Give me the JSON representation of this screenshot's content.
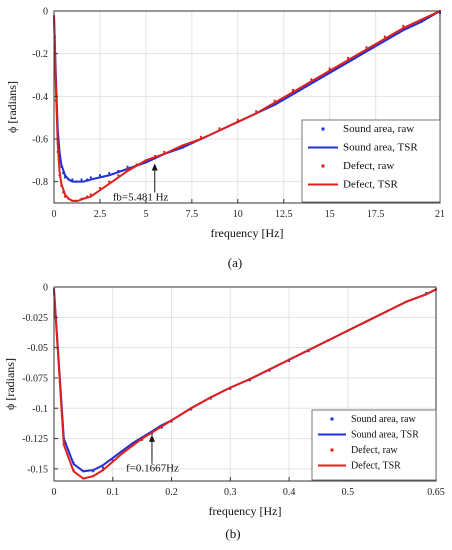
{
  "chart_data": [
    {
      "type": "line",
      "panel_label": "(a)",
      "xlabel": "frequency [Hz]",
      "ylabel": "ϕ [radians]",
      "xlim": [
        0,
        21
      ],
      "ylim": [
        -0.9,
        0
      ],
      "xticks": [
        "0",
        "2.5",
        "5",
        "7.5",
        "10",
        "12.5",
        "15",
        "17.5",
        "21"
      ],
      "xtick_values": [
        0,
        2.5,
        5,
        7.5,
        10,
        12.5,
        15,
        17.5,
        21
      ],
      "yticks": [
        "0",
        "-0.2",
        "-0.4",
        "-0.6",
        "-0.8"
      ],
      "ytick_values": [
        0,
        -0.2,
        -0.4,
        -0.6,
        -0.8
      ],
      "grid": true,
      "legend_position": "right",
      "series": [
        {
          "name": "Sound area, raw",
          "style": "points",
          "color": "#1f2fd6",
          "x": [
            0.05,
            0.1,
            0.2,
            0.3,
            0.4,
            0.5,
            0.6,
            0.8,
            1.0,
            1.2,
            1.5,
            1.8,
            2.0,
            2.5,
            3.0,
            3.5,
            4.0,
            4.5,
            5.0,
            5.5,
            6.0,
            7.0,
            8.0,
            9.0,
            10.0,
            11.0,
            12.0,
            13.0,
            14.0,
            15.0,
            16.0,
            17.0,
            18.0,
            19.0,
            20.0,
            21.0
          ],
          "y": [
            -0.12,
            -0.35,
            -0.58,
            -0.68,
            -0.73,
            -0.76,
            -0.78,
            -0.79,
            -0.79,
            -0.8,
            -0.79,
            -0.79,
            -0.78,
            -0.77,
            -0.76,
            -0.75,
            -0.73,
            -0.72,
            -0.7,
            -0.69,
            -0.67,
            -0.64,
            -0.6,
            -0.56,
            -0.52,
            -0.48,
            -0.43,
            -0.38,
            -0.33,
            -0.28,
            -0.23,
            -0.18,
            -0.13,
            -0.08,
            -0.05,
            -0.01
          ]
        },
        {
          "name": "Sound area, TSR",
          "style": "line",
          "color": "#1f2fd6",
          "x": [
            0.0,
            0.1,
            0.2,
            0.3,
            0.4,
            0.6,
            0.8,
            1.0,
            1.3,
            1.6,
            2.0,
            3.0,
            4.0,
            5.0,
            6.0,
            7.0,
            8.0,
            9.0,
            10.0,
            11.0,
            12.0,
            13.0,
            14.0,
            15.0,
            16.0,
            17.0,
            18.0,
            19.0,
            20.0,
            21.0
          ],
          "y": [
            -0.02,
            -0.3,
            -0.55,
            -0.66,
            -0.72,
            -0.77,
            -0.79,
            -0.8,
            -0.8,
            -0.8,
            -0.79,
            -0.77,
            -0.74,
            -0.71,
            -0.67,
            -0.64,
            -0.6,
            -0.56,
            -0.52,
            -0.48,
            -0.44,
            -0.39,
            -0.34,
            -0.29,
            -0.24,
            -0.19,
            -0.14,
            -0.09,
            -0.05,
            0.0
          ]
        },
        {
          "name": "Defect, raw",
          "style": "points",
          "color": "#e0201a",
          "x": [
            0.05,
            0.1,
            0.2,
            0.3,
            0.4,
            0.5,
            0.6,
            0.8,
            1.0,
            1.2,
            1.5,
            1.8,
            2.0,
            2.5,
            3.0,
            3.5,
            4.0,
            4.5,
            5.0,
            5.5,
            6.0,
            7.0,
            8.0,
            9.0,
            10.0,
            11.0,
            12.0,
            13.0,
            14.0,
            15.0,
            16.0,
            17.0,
            18.0,
            19.0,
            20.0,
            21.0
          ],
          "y": [
            -0.15,
            -0.42,
            -0.66,
            -0.77,
            -0.82,
            -0.85,
            -0.87,
            -0.88,
            -0.89,
            -0.89,
            -0.88,
            -0.87,
            -0.86,
            -0.83,
            -0.8,
            -0.77,
            -0.74,
            -0.72,
            -0.7,
            -0.68,
            -0.66,
            -0.63,
            -0.59,
            -0.55,
            -0.51,
            -0.47,
            -0.42,
            -0.37,
            -0.32,
            -0.27,
            -0.22,
            -0.17,
            -0.12,
            -0.07,
            -0.04,
            0.0
          ]
        },
        {
          "name": "Defect, TSR",
          "style": "line",
          "color": "#e0201a",
          "x": [
            0.0,
            0.1,
            0.2,
            0.3,
            0.4,
            0.6,
            0.8,
            1.0,
            1.3,
            1.6,
            2.0,
            2.5,
            3.0,
            4.0,
            5.0,
            6.0,
            7.0,
            8.0,
            9.0,
            10.0,
            11.0,
            12.0,
            13.0,
            14.0,
            15.0,
            16.0,
            17.0,
            18.0,
            19.0,
            20.0,
            21.0
          ],
          "y": [
            -0.02,
            -0.35,
            -0.62,
            -0.75,
            -0.81,
            -0.86,
            -0.88,
            -0.89,
            -0.89,
            -0.88,
            -0.87,
            -0.84,
            -0.81,
            -0.75,
            -0.7,
            -0.67,
            -0.63,
            -0.6,
            -0.56,
            -0.52,
            -0.48,
            -0.43,
            -0.38,
            -0.33,
            -0.28,
            -0.23,
            -0.18,
            -0.13,
            -0.08,
            -0.04,
            0.0
          ]
        }
      ],
      "annotation": {
        "text": "fb=5.481 Hz",
        "x": 5.481,
        "y": -0.71
      }
    },
    {
      "type": "line",
      "panel_label": "(b)",
      "xlabel": "frequency [Hz]",
      "ylabel": "ϕ [radians]",
      "xlim": [
        0,
        0.65
      ],
      "ylim": [
        -0.16,
        0
      ],
      "xticks": [
        "0",
        "0.1",
        "0.2",
        "0.3",
        "0.4",
        "0.5",
        "0.65"
      ],
      "xtick_values": [
        0,
        0.1,
        0.2,
        0.3,
        0.4,
        0.5,
        0.65
      ],
      "yticks": [
        "0",
        "-0.025",
        "-0.05",
        "-0.075",
        "-0.1",
        "-0.125",
        "-0.15"
      ],
      "ytick_values": [
        0,
        -0.025,
        -0.05,
        -0.075,
        -0.1,
        -0.125,
        -0.15
      ],
      "grid": true,
      "legend_position": "bottom-right",
      "series": [
        {
          "name": "Sound area, raw",
          "style": "points",
          "color": "#1f2fd6",
          "x": [
            0.0,
            0.0167,
            0.0333,
            0.05,
            0.0667,
            0.0833,
            0.1,
            0.1167,
            0.1333,
            0.15,
            0.1667,
            0.1833,
            0.2,
            0.2333,
            0.2667,
            0.3,
            0.3333,
            0.3667,
            0.4,
            0.4333,
            0.4667,
            0.5,
            0.5333,
            0.5667,
            0.6,
            0.6333,
            0.65
          ],
          "y": [
            -0.002,
            -0.125,
            -0.145,
            -0.152,
            -0.152,
            -0.149,
            -0.143,
            -0.137,
            -0.131,
            -0.126,
            -0.121,
            -0.116,
            -0.111,
            -0.101,
            -0.092,
            -0.084,
            -0.077,
            -0.069,
            -0.061,
            -0.053,
            -0.044,
            -0.036,
            -0.028,
            -0.02,
            -0.012,
            -0.005,
            -0.002
          ]
        },
        {
          "name": "Sound area, TSR",
          "style": "line",
          "color": "#1f2fd6",
          "x": [
            0.0,
            0.0167,
            0.0333,
            0.05,
            0.0667,
            0.0833,
            0.1,
            0.1167,
            0.1333,
            0.15,
            0.1667,
            0.1833,
            0.2,
            0.2333,
            0.2667,
            0.3,
            0.3333,
            0.3667,
            0.4,
            0.4333,
            0.4667,
            0.5,
            0.5333,
            0.5667,
            0.6,
            0.6333,
            0.65
          ],
          "y": [
            -0.002,
            -0.125,
            -0.146,
            -0.152,
            -0.151,
            -0.147,
            -0.141,
            -0.135,
            -0.129,
            -0.124,
            -0.119,
            -0.114,
            -0.11,
            -0.1,
            -0.091,
            -0.083,
            -0.076,
            -0.068,
            -0.06,
            -0.052,
            -0.044,
            -0.036,
            -0.028,
            -0.02,
            -0.012,
            -0.006,
            -0.002
          ]
        },
        {
          "name": "Defect, raw",
          "style": "points",
          "color": "#e0201a",
          "x": [
            0.0,
            0.0167,
            0.0333,
            0.05,
            0.0667,
            0.0833,
            0.1,
            0.1167,
            0.1333,
            0.15,
            0.1667,
            0.1833,
            0.2,
            0.2333,
            0.2667,
            0.3,
            0.3333,
            0.3667,
            0.4,
            0.4333,
            0.4667,
            0.5,
            0.5333,
            0.5667,
            0.6,
            0.6333,
            0.65
          ],
          "y": [
            -0.003,
            -0.13,
            -0.151,
            -0.158,
            -0.156,
            -0.151,
            -0.144,
            -0.137,
            -0.131,
            -0.126,
            -0.12,
            -0.115,
            -0.11,
            -0.1,
            -0.091,
            -0.083,
            -0.076,
            -0.068,
            -0.06,
            -0.052,
            -0.044,
            -0.036,
            -0.028,
            -0.02,
            -0.012,
            -0.006,
            -0.002
          ]
        },
        {
          "name": "Defect, TSR",
          "style": "line",
          "color": "#e0201a",
          "x": [
            0.0,
            0.0167,
            0.0333,
            0.05,
            0.0667,
            0.0833,
            0.1,
            0.1167,
            0.1333,
            0.15,
            0.1667,
            0.1833,
            0.2,
            0.2333,
            0.2667,
            0.3,
            0.3333,
            0.3667,
            0.4,
            0.4333,
            0.4667,
            0.5,
            0.5333,
            0.5667,
            0.6,
            0.6333,
            0.65
          ],
          "y": [
            -0.003,
            -0.13,
            -0.152,
            -0.158,
            -0.156,
            -0.151,
            -0.144,
            -0.137,
            -0.131,
            -0.125,
            -0.12,
            -0.115,
            -0.11,
            -0.1,
            -0.091,
            -0.083,
            -0.076,
            -0.068,
            -0.06,
            -0.052,
            -0.044,
            -0.036,
            -0.028,
            -0.02,
            -0.012,
            -0.006,
            -0.002
          ]
        }
      ],
      "annotation": {
        "text": "f=0.1667Hz",
        "x": 0.1667,
        "y": -0.121
      }
    }
  ]
}
